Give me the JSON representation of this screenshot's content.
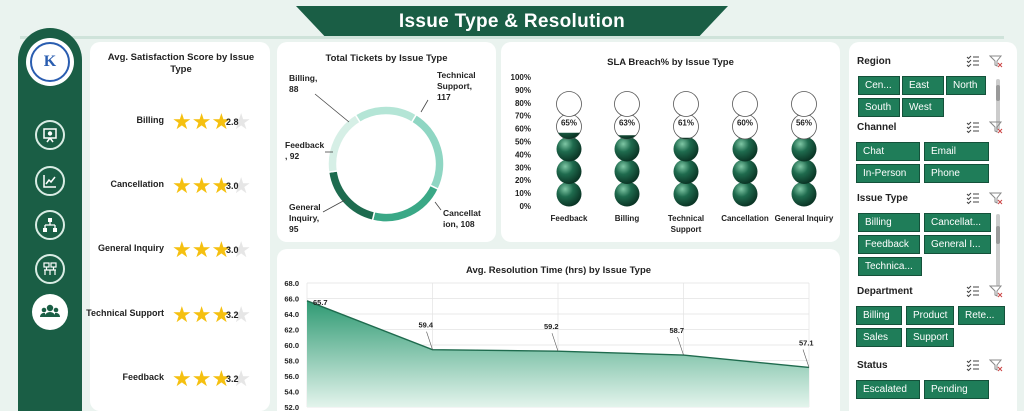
{
  "title": "Issue Type & Resolution",
  "logo_text": "K",
  "sidebar": {
    "icons": [
      "presentation-icon",
      "trend-chart-icon",
      "org-chart-icon",
      "team-structure-icon",
      "users-icon"
    ]
  },
  "satisfaction": {
    "title": "Avg. Satisfaction Score by Issue Type",
    "rows": [
      {
        "label": "Billing",
        "value": "2.8",
        "score": 2.8
      },
      {
        "label": "Cancellation",
        "value": "3.0",
        "score": 3.0
      },
      {
        "label": "General Inquiry",
        "value": "3.0",
        "score": 3.0
      },
      {
        "label": "Technical Support",
        "value": "3.2",
        "score": 3.2
      },
      {
        "label": "Feedback",
        "value": "3.2",
        "score": 3.2
      }
    ]
  },
  "chart_data": [
    {
      "type": "pie",
      "title": "Total Tickets by Issue Type",
      "labels": [
        "Technical Support, 117",
        "Cancellation, 108",
        "General Inquiry, 95",
        "Feedback, 92",
        "Billing, 88"
      ],
      "slices": [
        {
          "name": "Technical Support",
          "value": 117,
          "color": "#8fd6c3"
        },
        {
          "name": "Cancellation",
          "value": 108,
          "color": "#3aa886"
        },
        {
          "name": "General Inquiry",
          "value": 95,
          "color": "#1e6b4f"
        },
        {
          "name": "Feedback",
          "value": 92,
          "color": "#d6efe6"
        },
        {
          "name": "Billing",
          "value": 88,
          "color": "#b4e5d6"
        }
      ]
    },
    {
      "type": "bar",
      "title": "SLA Breach% by Issue Type",
      "categories": [
        "Feedback",
        "Billing",
        "Technical Support",
        "Cancellation",
        "General Inquiry"
      ],
      "values": [
        65,
        63,
        61,
        60,
        56
      ],
      "value_labels": [
        "65%",
        "63%",
        "61%",
        "60%",
        "56%"
      ],
      "yticks": [
        "0%",
        "10%",
        "20%",
        "30%",
        "40%",
        "50%",
        "60%",
        "70%",
        "80%",
        "90%",
        "100%"
      ],
      "ylim": [
        0,
        100
      ]
    },
    {
      "type": "area",
      "title": "Avg. Resolution Time (hrs) by Issue Type",
      "x": [
        0,
        1,
        2,
        3,
        4
      ],
      "values": [
        65.7,
        59.4,
        59.2,
        58.7,
        57.1
      ],
      "value_labels": [
        "65.7",
        "59.4",
        "59.2",
        "58.7",
        "57.1"
      ],
      "yticks": [
        "52.0",
        "54.0",
        "56.0",
        "58.0",
        "60.0",
        "62.0",
        "64.0",
        "66.0",
        "68.0"
      ],
      "ylim": [
        52,
        68
      ]
    }
  ],
  "slicers": [
    {
      "title": "Region",
      "items": [
        "Cen...",
        "East",
        "North",
        "South",
        "West"
      ]
    },
    {
      "title": "Channel",
      "items": [
        "Chat",
        "Email",
        "In-Person",
        "Phone"
      ]
    },
    {
      "title": "Issue Type",
      "items": [
        "Billing",
        "Cancellat...",
        "Feedback",
        "General I...",
        "Technica..."
      ]
    },
    {
      "title": "Department",
      "items": [
        "Billing",
        "Product",
        "Rete...",
        "Sales",
        "Support"
      ]
    },
    {
      "title": "Status",
      "items": [
        "Escalated",
        "Pending"
      ]
    }
  ]
}
